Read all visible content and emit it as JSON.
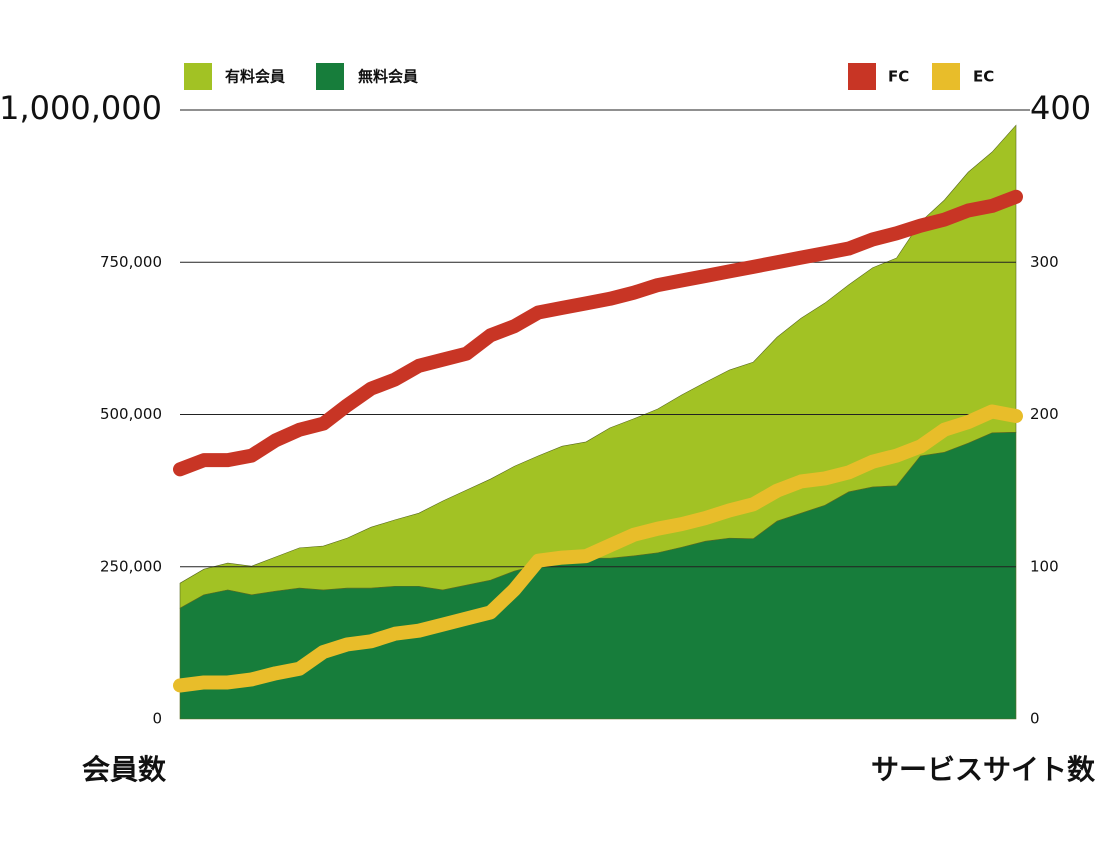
{
  "chart_data": {
    "type": "stacked_area_line",
    "categories": [
      null,
      null,
      null,
      null,
      null,
      null,
      null,
      null,
      null,
      null,
      null,
      null,
      null,
      null,
      null,
      null,
      null,
      null,
      null,
      null,
      null,
      null,
      null,
      null,
      null,
      null,
      null,
      null,
      null,
      null,
      null,
      null,
      null,
      null,
      null,
      null
    ],
    "series": [
      {
        "name": "有料会員",
        "color": "#a2c224",
        "values": [
          41000,
          42000,
          44000,
          47000,
          56000,
          66000,
          72000,
          82000,
          100000,
          109000,
          120000,
          146000,
          156000,
          166000,
          172000,
          179000,
          187000,
          191000,
          214000,
          225000,
          236000,
          250000,
          261000,
          276000,
          290000,
          302000,
          320000,
          332000,
          340000,
          360000,
          374000,
          384000,
          414000,
          445000,
          461000,
          504000
        ]
      },
      {
        "name": "無料会員",
        "color": "#177d3b",
        "values": [
          182000,
          204000,
          212000,
          204000,
          210000,
          215000,
          212000,
          215000,
          215000,
          218000,
          218000,
          212000,
          220000,
          228000,
          243000,
          253000,
          261000,
          264000,
          264000,
          268000,
          273000,
          282000,
          292000,
          297000,
          296000,
          325000,
          338000,
          351000,
          373000,
          381000,
          383000,
          432000,
          438000,
          453000,
          470000,
          471000
        ]
      },
      {
        "name": "FC",
        "color": "#c83525",
        "axis": "y2",
        "values": [
          164,
          170,
          170,
          173,
          183,
          190,
          194,
          206,
          217,
          223,
          232,
          236,
          240,
          252,
          258,
          267,
          270,
          273,
          276,
          280,
          285,
          288,
          291,
          294,
          297,
          300,
          303,
          306,
          309,
          315,
          319,
          324,
          328,
          334,
          337,
          343
        ]
      },
      {
        "name": "EC",
        "color": "#e8bd2a",
        "axis": "y2",
        "values": [
          22,
          24,
          24,
          26,
          30,
          33,
          44,
          49,
          51,
          56,
          58,
          62,
          66,
          70,
          85,
          104,
          106,
          107,
          114,
          121,
          125,
          128,
          132,
          137,
          141,
          150,
          156,
          158,
          162,
          169,
          173,
          179,
          190,
          195,
          202,
          199
        ]
      }
    ],
    "ylim": [
      0,
      1000000
    ],
    "yticks": [
      0,
      {
        "value": 250000,
        "label": "250,000"
      },
      {
        "value": 500000,
        "label": "500,000"
      },
      {
        "value": 750000,
        "label": "750,000"
      },
      {
        "value": 1000000,
        "label": "1,000,000"
      }
    ],
    "y2lim": [
      0,
      400
    ],
    "y2ticks": [
      0,
      100,
      200,
      300,
      400
    ],
    "ylabel": "会員数",
    "y2label": "サービスサイト数",
    "grid": true
  }
}
